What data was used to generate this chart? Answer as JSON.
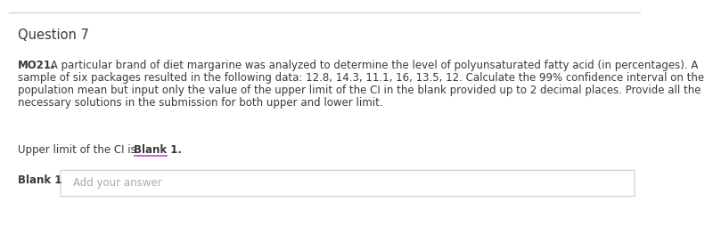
{
  "title": "Question 7",
  "bold_label": "MO21.",
  "line1_rest": " A particular brand of diet margarine was analyzed to determine the level of polyunsaturated fatty acid (in percentages). A",
  "line2": "sample of six packages resulted in the following data: 12.8, 14.3, 11.1, 16, 13.5, 12. Calculate the 99% confidence interval on the",
  "line3": "population mean but input only the value of the upper limit of the CI in the blank provided up to 2 decimal places. Provide all the",
  "line4": "necessary solutions in the submission for both upper and lower limit.",
  "upper_normal": "Upper limit of the CI is ",
  "upper_bold": "Blank 1.",
  "blank_label": "Blank 1",
  "placeholder": "Add your answer",
  "background_color": "#ffffff",
  "text_color": "#3a3a3a",
  "gray_text_color": "#aaaaaa",
  "underline_color": "#cc44cc",
  "border_color": "#cccccc",
  "title_fontsize": 10.5,
  "body_fontsize": 8.5,
  "bold_label_fontsize": 8.5,
  "placeholder_fontsize": 8.5
}
